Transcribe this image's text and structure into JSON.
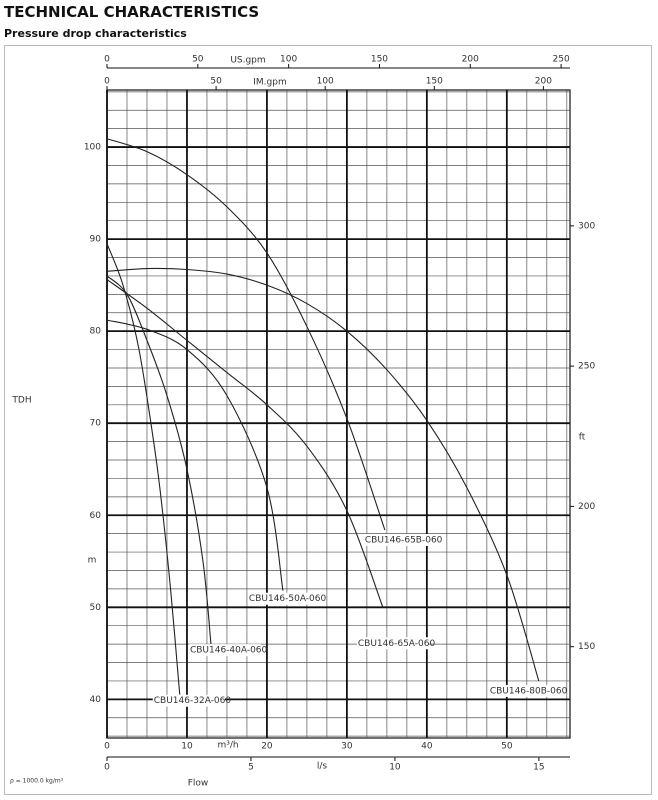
{
  "header": {
    "title": "TECHNICAL CHARACTERISTICS",
    "subtitle": "Pressure drop characteristics",
    "note": "ρ = 1000.0 kg/m³"
  },
  "chart_data": {
    "type": "line",
    "x_title": "Flow",
    "y_title": "TDH",
    "xlabel": "m³/h",
    "ylabel": "m",
    "xlim": [
      0,
      57.9
    ],
    "xticks": [
      0,
      10,
      20,
      30,
      40,
      50
    ],
    "ylim": [
      35.8,
      106.2
    ],
    "yticks": [
      40,
      50,
      60,
      70,
      80,
      90,
      100
    ],
    "grid": true,
    "xminor": [
      2.5,
      5,
      7.5,
      12.5,
      15,
      17.5,
      22.5,
      25,
      27.5,
      32.5,
      35,
      37.5,
      42.5,
      45,
      47.5,
      52.5,
      55,
      57.5
    ],
    "yminor": [
      36,
      38,
      42,
      44,
      46,
      48,
      52,
      54,
      56,
      58,
      62,
      64,
      66,
      68,
      72,
      74,
      76,
      78,
      82,
      84,
      86,
      88,
      92,
      94,
      96,
      98,
      102,
      104,
      106
    ],
    "color": "#222222",
    "extra_axes": [
      {
        "label": "US.gpm",
        "side": "top",
        "lim": [
          0,
          254.9
        ],
        "ticks": [
          0,
          50,
          100,
          150,
          200,
          250
        ]
      },
      {
        "label": "IM.gpm",
        "side": "top",
        "lim": [
          0,
          212.2
        ],
        "ticks": [
          0,
          50,
          100,
          150,
          200
        ]
      },
      {
        "label": "l/s",
        "side": "bottom",
        "lim": [
          0,
          16.08
        ],
        "ticks": [
          0,
          5,
          10,
          15
        ]
      },
      {
        "label": "ft",
        "side": "right",
        "lim": [
          117.45,
          348.43
        ],
        "ticks": [
          150,
          200,
          250,
          300
        ]
      }
    ],
    "series": [
      {
        "name": "CBU146-80B-060",
        "x": [
          0,
          5,
          10,
          15,
          20,
          25,
          30,
          35,
          40,
          45,
          50,
          54
        ],
        "values": [
          86.5,
          86.8,
          86.7,
          86.2,
          85,
          83,
          80,
          75.8,
          70.3,
          63,
          53.5,
          42
        ]
      },
      {
        "name": "CBU146-65B-060",
        "x": [
          0,
          5,
          10,
          15,
          20,
          25,
          30,
          34.75
        ],
        "values": [
          100.9,
          99.5,
          97,
          93.5,
          88.5,
          80.5,
          70.5,
          58.4
        ]
      },
      {
        "name": "CBU146-65A-060",
        "x": [
          0,
          5,
          10,
          15,
          20,
          25,
          30,
          34.5
        ],
        "values": [
          85.6,
          82.5,
          79,
          75.5,
          72,
          67.5,
          60.5,
          50
        ]
      },
      {
        "name": "CBU146-50A-060",
        "x": [
          0,
          5,
          10,
          15,
          20,
          22
        ],
        "values": [
          81.2,
          80.2,
          78,
          73,
          63,
          51.8
        ]
      },
      {
        "name": "CBU146-40A-060",
        "x": [
          0,
          2.5,
          5,
          7.5,
          10,
          12,
          13
        ],
        "values": [
          86,
          84,
          79,
          73,
          65,
          55,
          46
        ]
      },
      {
        "name": "CBU146-32A-060",
        "x": [
          0,
          2,
          4,
          6,
          7,
          8,
          9.1
        ],
        "values": [
          89.5,
          85,
          78,
          67,
          60,
          51.5,
          40.5
        ]
      }
    ]
  }
}
